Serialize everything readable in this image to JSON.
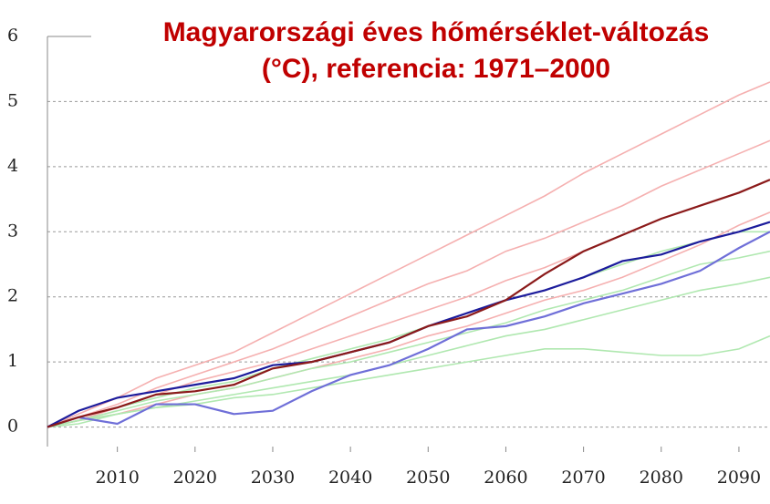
{
  "chart_data": {
    "type": "line",
    "title": "Magyarországi éves hőmérséklet-változás (°C), referencia: 1971–2000",
    "x": [
      2001,
      2005,
      2010,
      2015,
      2020,
      2025,
      2030,
      2035,
      2040,
      2045,
      2050,
      2055,
      2060,
      2065,
      2070,
      2075,
      2080,
      2085,
      2090,
      2094
    ],
    "xlim": [
      2001,
      2094
    ],
    "xticks": [
      2010,
      2020,
      2030,
      2040,
      2050,
      2060,
      2070,
      2080,
      2090
    ],
    "ylim": [
      -0.3,
      6
    ],
    "yticks": [
      0,
      1,
      2,
      3,
      4,
      5,
      6
    ],
    "grid": true,
    "series": [
      {
        "color": "#f5b0b0",
        "values": [
          0,
          0.2,
          0.45,
          0.75,
          0.95,
          1.15,
          1.45,
          1.75,
          2.05,
          2.35,
          2.65,
          2.95,
          3.25,
          3.55,
          3.9,
          4.2,
          4.5,
          4.8,
          5.1,
          5.3
        ]
      },
      {
        "color": "#f5b0b0",
        "values": [
          0,
          0.15,
          0.35,
          0.6,
          0.8,
          1.0,
          1.2,
          1.45,
          1.7,
          1.95,
          2.2,
          2.4,
          2.7,
          2.9,
          3.15,
          3.4,
          3.7,
          3.95,
          4.2,
          4.4
        ]
      },
      {
        "color": "#f5b0b0",
        "values": [
          0,
          0.1,
          0.3,
          0.5,
          0.7,
          0.85,
          1.0,
          1.2,
          1.4,
          1.6,
          1.8,
          2.0,
          2.25,
          2.45,
          2.7,
          2.95,
          3.2,
          3.4,
          3.6,
          3.8
        ]
      },
      {
        "color": "#f5b0b0",
        "values": [
          0,
          0.1,
          0.2,
          0.35,
          0.5,
          0.6,
          0.75,
          0.9,
          1.05,
          1.2,
          1.4,
          1.55,
          1.75,
          1.95,
          2.1,
          2.3,
          2.55,
          2.8,
          3.1,
          3.3
        ]
      },
      {
        "color": "#b0e8b0",
        "values": [
          0,
          0.15,
          0.3,
          0.45,
          0.6,
          0.7,
          0.9,
          1.05,
          1.2,
          1.35,
          1.55,
          1.75,
          1.95,
          2.1,
          2.3,
          2.5,
          2.7,
          2.85,
          3.0,
          3.0
        ]
      },
      {
        "color": "#b0e8b0",
        "values": [
          0,
          0.1,
          0.25,
          0.4,
          0.5,
          0.6,
          0.75,
          0.9,
          1.0,
          1.15,
          1.3,
          1.45,
          1.6,
          1.8,
          1.95,
          2.1,
          2.3,
          2.5,
          2.6,
          2.7
        ]
      },
      {
        "color": "#b0e8b0",
        "values": [
          0,
          0.05,
          0.2,
          0.3,
          0.4,
          0.5,
          0.6,
          0.7,
          0.8,
          0.95,
          1.1,
          1.25,
          1.4,
          1.5,
          1.65,
          1.8,
          1.95,
          2.1,
          2.2,
          2.3
        ]
      },
      {
        "color": "#b0e8b0",
        "values": [
          0,
          0.1,
          0.2,
          0.3,
          0.35,
          0.45,
          0.5,
          0.6,
          0.7,
          0.8,
          0.9,
          1.0,
          1.1,
          1.2,
          1.2,
          1.15,
          1.1,
          1.1,
          1.2,
          1.4
        ]
      },
      {
        "color": "#6f6fd8",
        "values": [
          0,
          0.15,
          0.05,
          0.35,
          0.35,
          0.2,
          0.25,
          0.55,
          0.8,
          0.95,
          1.2,
          1.5,
          1.55,
          1.7,
          1.9,
          2.05,
          2.2,
          2.4,
          2.75,
          3.0
        ]
      },
      {
        "color": "#1c1c9c",
        "values": [
          0,
          0.25,
          0.45,
          0.55,
          0.65,
          0.75,
          0.95,
          1.0,
          1.15,
          1.3,
          1.55,
          1.75,
          1.95,
          2.1,
          2.3,
          2.55,
          2.65,
          2.85,
          3.0,
          3.15
        ]
      },
      {
        "color": "#8b1a1a",
        "values": [
          0,
          0.15,
          0.3,
          0.5,
          0.55,
          0.65,
          0.9,
          1.0,
          1.15,
          1.3,
          1.55,
          1.7,
          1.95,
          2.35,
          2.7,
          2.95,
          3.2,
          3.4,
          3.6,
          3.8
        ]
      }
    ]
  }
}
